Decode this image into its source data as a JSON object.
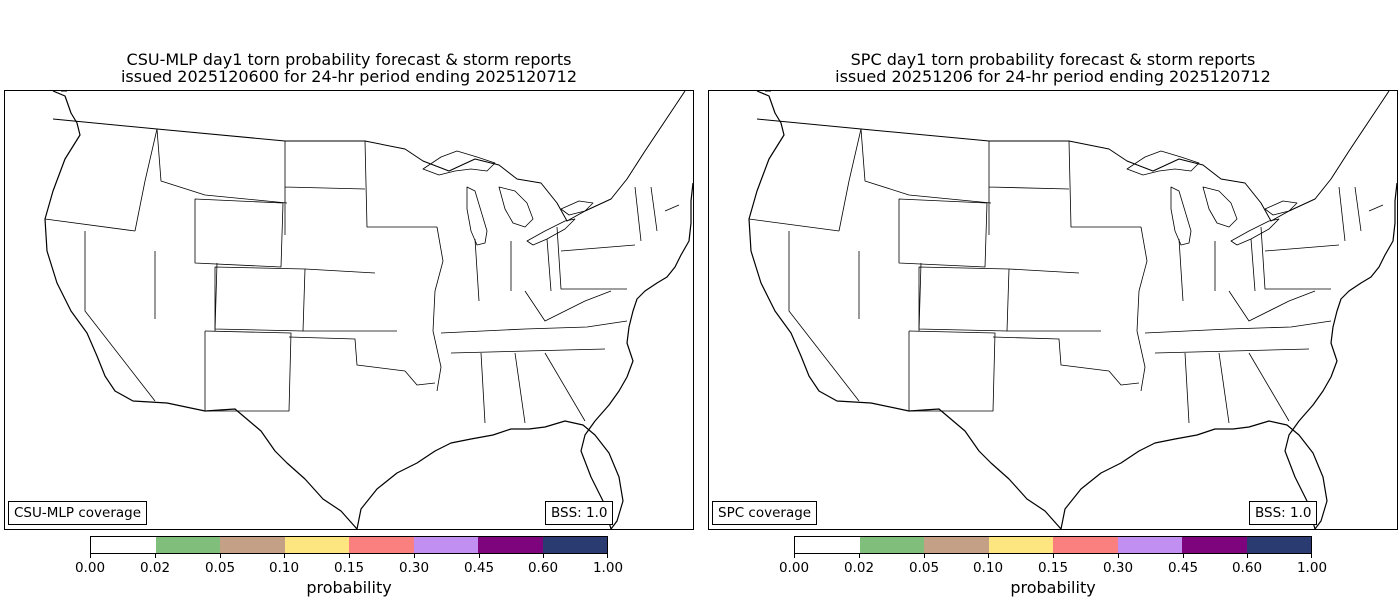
{
  "panels": [
    {
      "title_line1": "CSU-MLP day1 torn probability forecast & storm reports",
      "title_line2": "issued 2025120600 for 24-hr period ending 2025120712",
      "coverage_label": "CSU-MLP coverage",
      "bss_label": "BSS: 1.0"
    },
    {
      "title_line1": "SPC day1 torn probability forecast & storm reports",
      "title_line2": "issued 20251206 for 24-hr period ending 2025120712",
      "coverage_label": "SPC coverage",
      "bss_label": "BSS: 1.0"
    }
  ],
  "colorbar": {
    "label": "probability",
    "ticks": [
      "0.00",
      "0.02",
      "0.05",
      "0.10",
      "0.15",
      "0.30",
      "0.45",
      "0.60",
      "1.00"
    ],
    "colors": [
      "#ffffff",
      "#7fbf7b",
      "#c4a186",
      "#fde57f",
      "#fa7f7f",
      "#c18ef2",
      "#7e047e",
      "#293b70"
    ]
  },
  "map": {
    "projection": "lambert-conformal",
    "region": "CONUS",
    "layers": [
      "state-boundaries",
      "country-boundaries",
      "coastlines",
      "great-lakes"
    ]
  }
}
